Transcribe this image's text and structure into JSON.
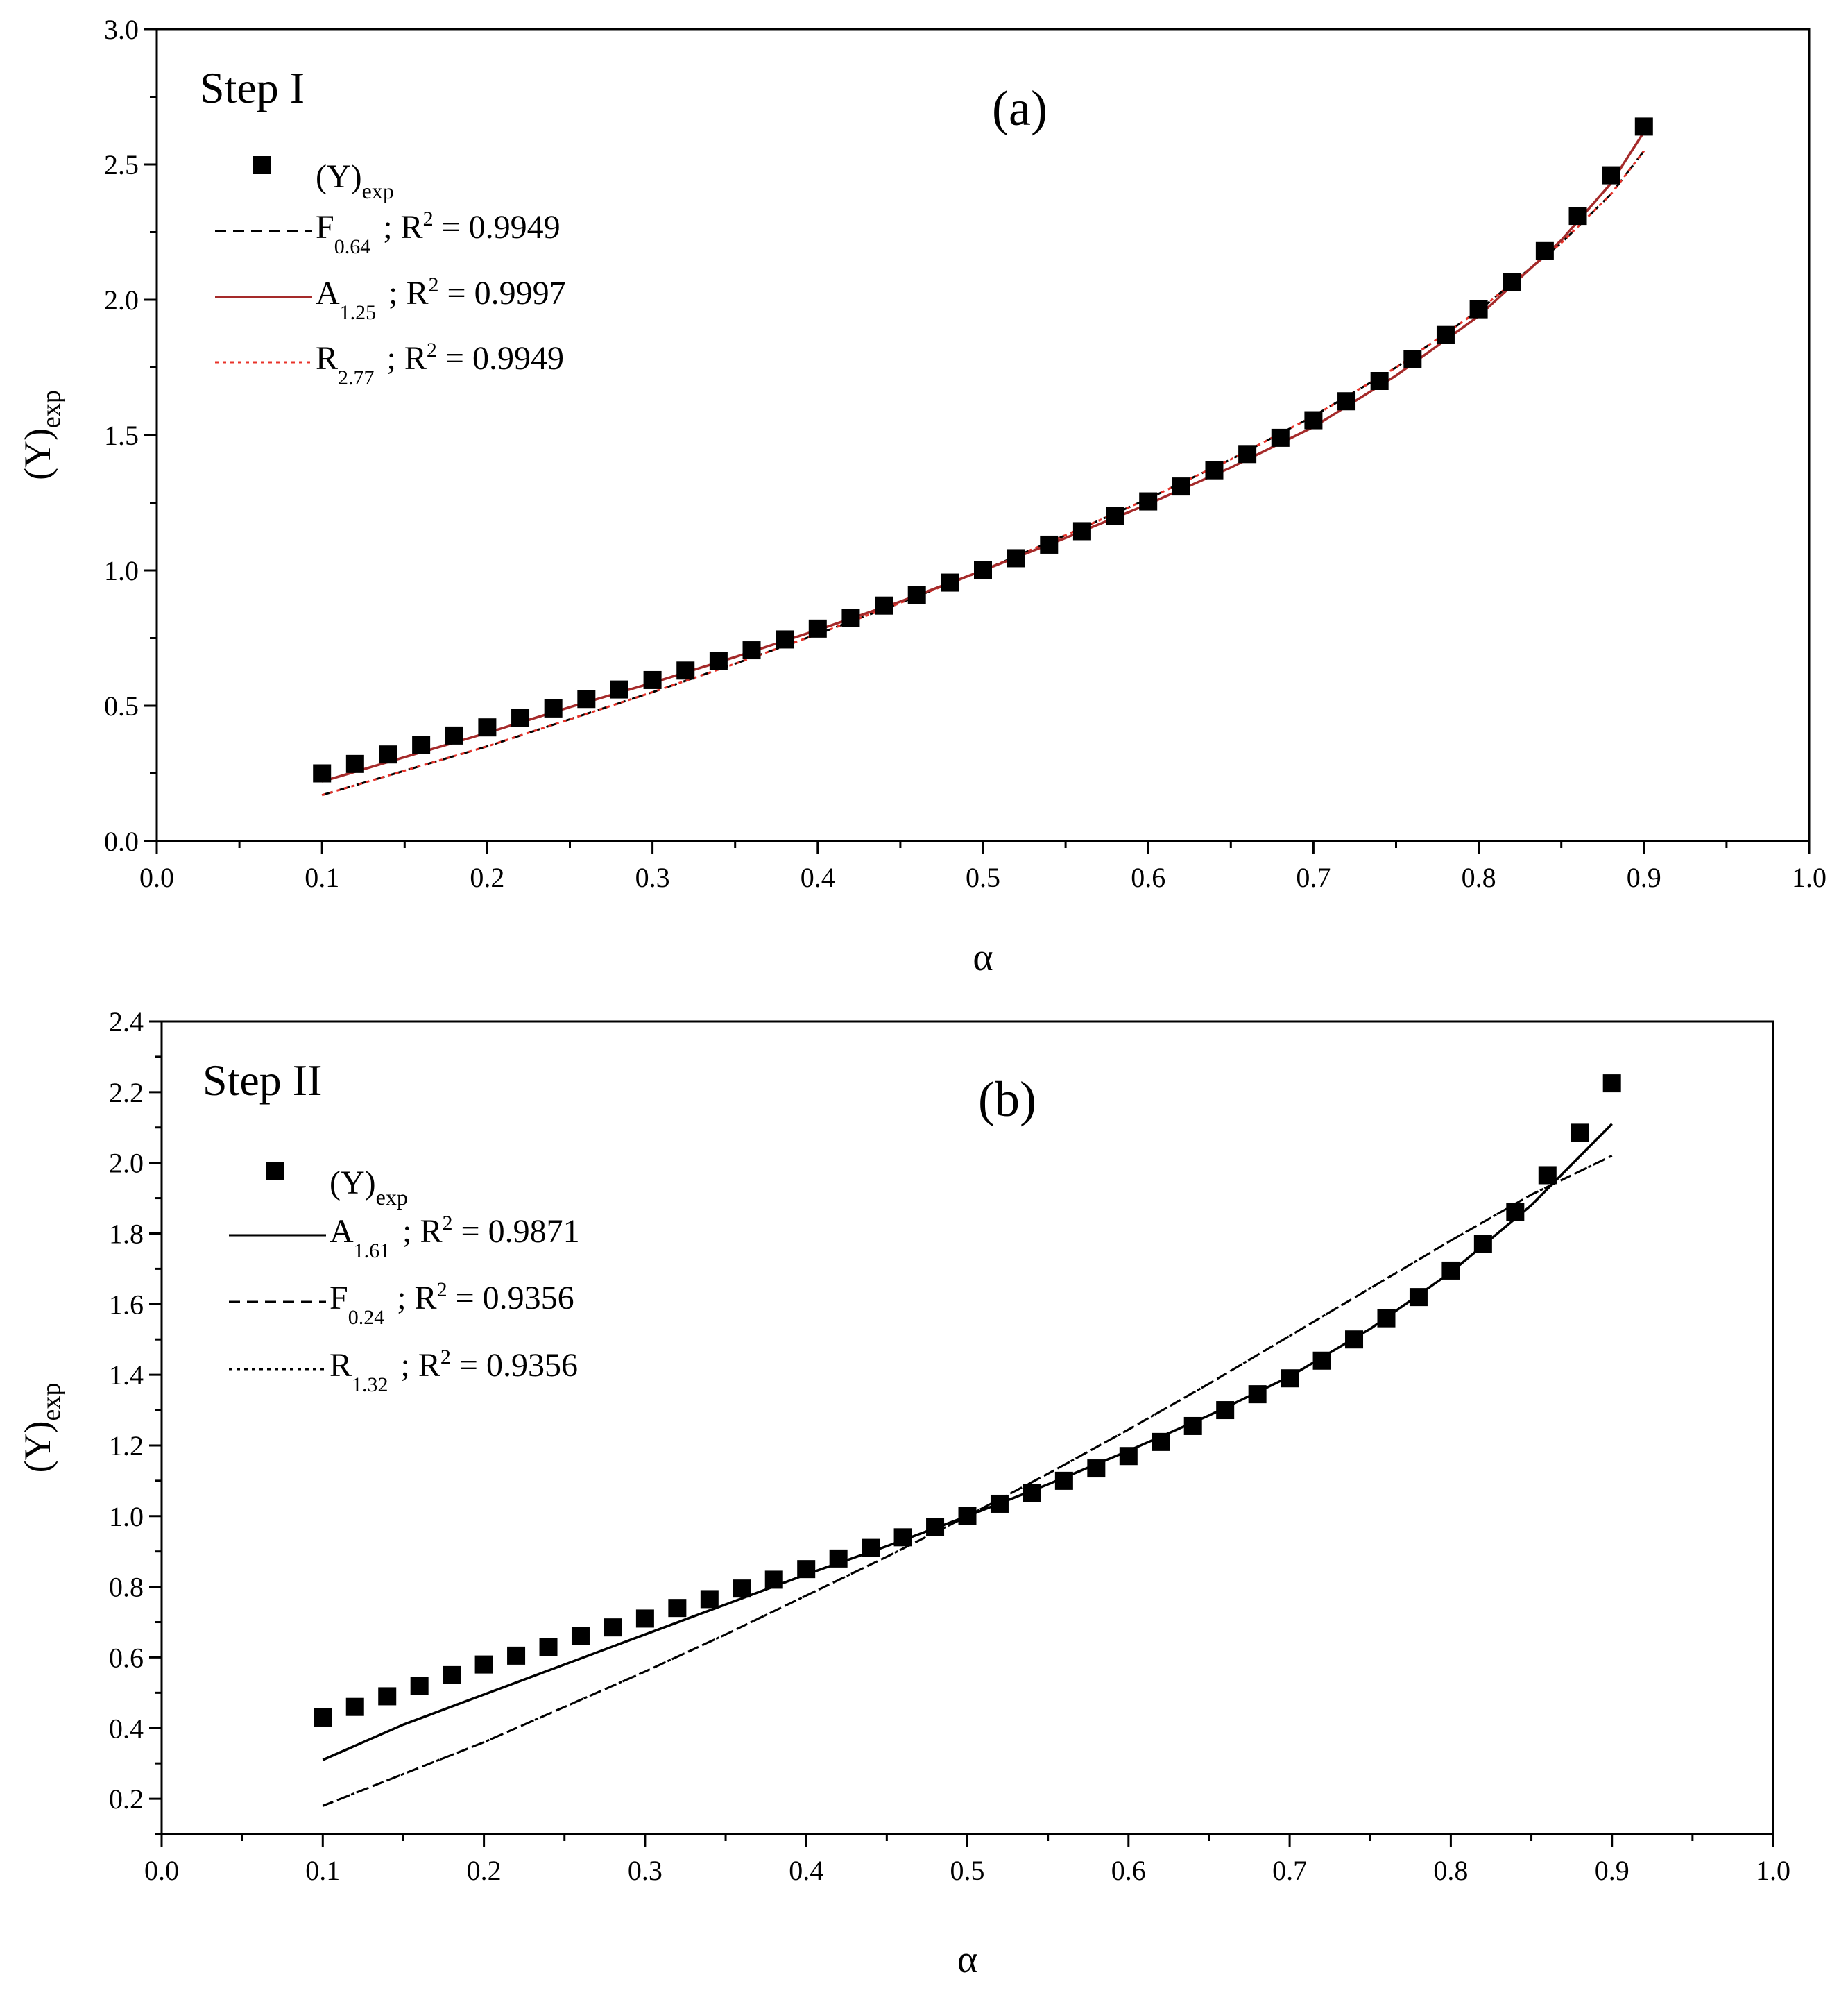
{
  "chart_data": [
    {
      "type": "scatter",
      "panel_label": "(a)",
      "step_label": "Step I",
      "xlabel": "α",
      "ylabel": {
        "main": "(Y)",
        "sub": "exp"
      },
      "xlim": [
        0.0,
        1.0
      ],
      "ylim": [
        0.0,
        3.0
      ],
      "xticks": [
        "0.0",
        "0.1",
        "0.2",
        "0.3",
        "0.4",
        "0.5",
        "0.6",
        "0.7",
        "0.8",
        "0.9",
        "1.0"
      ],
      "yticks": [
        "0.0",
        "0.5",
        "1.0",
        "1.5",
        "2.0",
        "2.5",
        "3.0"
      ],
      "legend_location": "top-left",
      "legend": [
        {
          "main": "(Y)",
          "sub": "exp",
          "r2": "",
          "style": "marker",
          "color": "#000000"
        },
        {
          "main": "F",
          "sub": "0.64",
          "r2": "0.9949",
          "style": "dashed",
          "color": "#000000"
        },
        {
          "main": "A",
          "sub": "1.25",
          "r2": "0.9997",
          "style": "solid",
          "color": "#a52a2a"
        },
        {
          "main": "R",
          "sub": "2.77",
          "r2": "0.9949",
          "style": "dotted",
          "color": "#e8332a"
        }
      ],
      "series": [
        {
          "name": "(Y)exp",
          "kind": "points",
          "color": "#000000",
          "x": [
            0.1,
            0.12,
            0.14,
            0.16,
            0.18,
            0.2,
            0.22,
            0.24,
            0.26,
            0.28,
            0.3,
            0.32,
            0.34,
            0.36,
            0.38,
            0.4,
            0.42,
            0.44,
            0.46,
            0.48,
            0.5,
            0.52,
            0.54,
            0.56,
            0.58,
            0.6,
            0.62,
            0.64,
            0.66,
            0.68,
            0.7,
            0.72,
            0.74,
            0.76,
            0.78,
            0.8,
            0.82,
            0.84,
            0.86,
            0.88,
            0.9
          ],
          "y": [
            0.25,
            0.285,
            0.32,
            0.355,
            0.39,
            0.42,
            0.455,
            0.49,
            0.525,
            0.56,
            0.595,
            0.63,
            0.665,
            0.705,
            0.745,
            0.785,
            0.825,
            0.87,
            0.91,
            0.955,
            1.0,
            1.045,
            1.095,
            1.145,
            1.2,
            1.255,
            1.31,
            1.37,
            1.43,
            1.49,
            1.555,
            1.625,
            1.7,
            1.78,
            1.87,
            1.965,
            2.065,
            2.18,
            2.31,
            2.46,
            2.64
          ]
        },
        {
          "name": "F0.64",
          "kind": "line",
          "style": "dashed",
          "color": "#000000",
          "x": [
            0.1,
            0.15,
            0.2,
            0.25,
            0.3,
            0.35,
            0.4,
            0.45,
            0.5,
            0.55,
            0.6,
            0.65,
            0.7,
            0.75,
            0.8,
            0.85,
            0.88,
            0.9
          ],
          "y": [
            0.17,
            0.26,
            0.35,
            0.45,
            0.55,
            0.655,
            0.765,
            0.88,
            1.0,
            1.13,
            1.265,
            1.41,
            1.57,
            1.75,
            1.96,
            2.21,
            2.39,
            2.55
          ]
        },
        {
          "name": "R2.77",
          "kind": "line",
          "style": "dotted",
          "color": "#e8332a",
          "x": [
            0.1,
            0.15,
            0.2,
            0.25,
            0.3,
            0.35,
            0.4,
            0.45,
            0.5,
            0.55,
            0.6,
            0.65,
            0.7,
            0.75,
            0.8,
            0.85,
            0.88,
            0.9
          ],
          "y": [
            0.17,
            0.26,
            0.35,
            0.45,
            0.55,
            0.655,
            0.765,
            0.88,
            1.0,
            1.13,
            1.265,
            1.41,
            1.57,
            1.75,
            1.96,
            2.21,
            2.39,
            2.55
          ]
        },
        {
          "name": "A1.25",
          "kind": "line",
          "style": "solid",
          "color": "#a52a2a",
          "x": [
            0.1,
            0.15,
            0.2,
            0.25,
            0.3,
            0.35,
            0.4,
            0.45,
            0.5,
            0.55,
            0.6,
            0.65,
            0.7,
            0.75,
            0.8,
            0.85,
            0.88,
            0.9
          ],
          "y": [
            0.22,
            0.31,
            0.4,
            0.495,
            0.585,
            0.68,
            0.78,
            0.885,
            1.0,
            1.12,
            1.245,
            1.38,
            1.53,
            1.72,
            1.94,
            2.22,
            2.43,
            2.62
          ]
        }
      ]
    },
    {
      "type": "scatter",
      "panel_label": "(b)",
      "step_label": "Step II",
      "xlabel": "α",
      "ylabel": {
        "main": "(Y)",
        "sub": "exp"
      },
      "xlim": [
        0.0,
        1.0
      ],
      "ylim": [
        0.1,
        2.4
      ],
      "xticks": [
        "0.0",
        "0.1",
        "0.2",
        "0.3",
        "0.4",
        "0.5",
        "0.6",
        "0.7",
        "0.8",
        "0.9",
        "1.0"
      ],
      "yticks": [
        "0.2",
        "0.4",
        "0.6",
        "0.8",
        "1.0",
        "1.2",
        "1.4",
        "1.6",
        "1.8",
        "2.0",
        "2.2",
        "2.4"
      ],
      "legend_location": "top-left",
      "legend": [
        {
          "main": "(Y)",
          "sub": "exp",
          "r2": "",
          "style": "marker",
          "color": "#000000"
        },
        {
          "main": "A",
          "sub": "1.61",
          "r2": "0.9871",
          "style": "solid",
          "color": "#000000"
        },
        {
          "main": "F",
          "sub": "0.24",
          "r2": "0.9356",
          "style": "dashed",
          "color": "#000000"
        },
        {
          "main": "R",
          "sub": "1.32",
          "r2": "0.9356",
          "style": "dotted",
          "color": "#000000"
        }
      ],
      "series": [
        {
          "name": "(Y)exp",
          "kind": "points",
          "color": "#000000",
          "x": [
            0.1,
            0.12,
            0.14,
            0.16,
            0.18,
            0.2,
            0.22,
            0.24,
            0.26,
            0.28,
            0.3,
            0.32,
            0.34,
            0.36,
            0.38,
            0.4,
            0.42,
            0.44,
            0.46,
            0.48,
            0.5,
            0.52,
            0.54,
            0.56,
            0.58,
            0.6,
            0.62,
            0.64,
            0.66,
            0.68,
            0.7,
            0.72,
            0.74,
            0.76,
            0.78,
            0.8,
            0.82,
            0.84,
            0.86,
            0.88,
            0.9
          ],
          "y": [
            0.43,
            0.46,
            0.49,
            0.52,
            0.55,
            0.58,
            0.605,
            0.63,
            0.66,
            0.685,
            0.71,
            0.74,
            0.765,
            0.795,
            0.82,
            0.85,
            0.88,
            0.91,
            0.94,
            0.97,
            1.0,
            1.035,
            1.065,
            1.1,
            1.135,
            1.17,
            1.21,
            1.255,
            1.3,
            1.345,
            1.39,
            1.44,
            1.5,
            1.56,
            1.62,
            1.695,
            1.77,
            1.86,
            1.965,
            2.085,
            2.225
          ]
        },
        {
          "name": "F0.24",
          "kind": "line",
          "style": "dashed",
          "color": "#000000",
          "x": [
            0.1,
            0.15,
            0.2,
            0.25,
            0.3,
            0.35,
            0.4,
            0.45,
            0.5,
            0.55,
            0.6,
            0.65,
            0.7,
            0.75,
            0.8,
            0.85,
            0.9
          ],
          "y": [
            0.18,
            0.27,
            0.36,
            0.46,
            0.56,
            0.665,
            0.775,
            0.885,
            1.0,
            1.12,
            1.245,
            1.375,
            1.51,
            1.645,
            1.78,
            1.91,
            2.02
          ]
        },
        {
          "name": "R1.32",
          "kind": "line",
          "style": "dotted",
          "color": "#000000",
          "x": [
            0.1,
            0.15,
            0.2,
            0.25,
            0.3,
            0.35,
            0.4,
            0.45,
            0.5,
            0.55,
            0.6,
            0.65,
            0.7,
            0.75,
            0.8,
            0.85,
            0.9
          ],
          "y": [
            0.18,
            0.27,
            0.36,
            0.46,
            0.56,
            0.665,
            0.775,
            0.885,
            1.0,
            1.12,
            1.245,
            1.375,
            1.51,
            1.645,
            1.78,
            1.91,
            2.02
          ]
        },
        {
          "name": "A1.61",
          "kind": "line",
          "style": "solid",
          "color": "#000000",
          "x": [
            0.1,
            0.15,
            0.2,
            0.25,
            0.3,
            0.35,
            0.4,
            0.45,
            0.5,
            0.55,
            0.6,
            0.65,
            0.7,
            0.75,
            0.8,
            0.85,
            0.9
          ],
          "y": [
            0.31,
            0.41,
            0.495,
            0.58,
            0.665,
            0.75,
            0.835,
            0.915,
            1.0,
            1.09,
            1.185,
            1.285,
            1.395,
            1.53,
            1.69,
            1.88,
            2.11
          ]
        }
      ]
    }
  ]
}
